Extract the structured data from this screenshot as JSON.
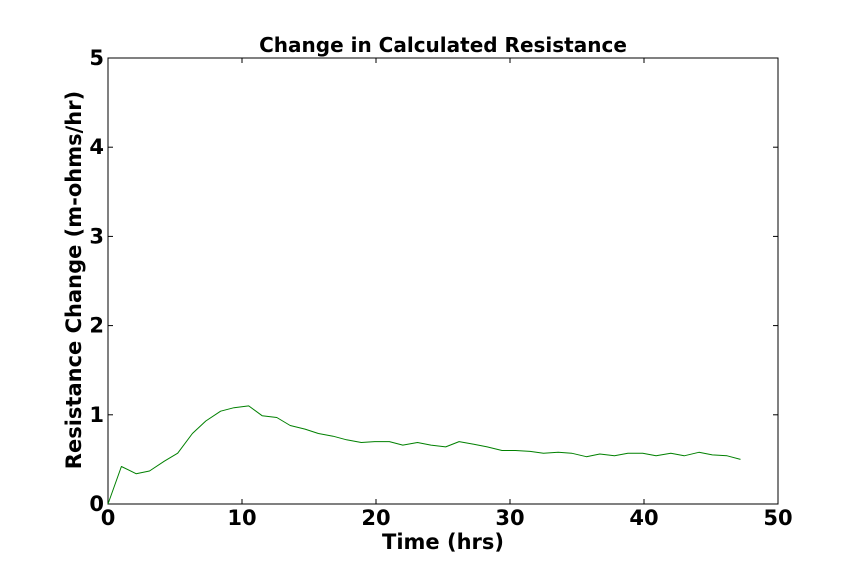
{
  "chart_data": {
    "type": "line",
    "title": "Change in Calculated Resistance",
    "xlabel": "Time (hrs)",
    "ylabel": "Resistance Change (m-ohms/hr)",
    "xlim": [
      0,
      50
    ],
    "ylim": [
      0,
      5
    ],
    "xticks": [
      0,
      10,
      20,
      30,
      40,
      50
    ],
    "yticks": [
      0,
      1,
      2,
      3,
      4,
      5
    ],
    "grid": false,
    "legend": "none",
    "series": [
      {
        "color": "#008000",
        "x": [
          0,
          1.0,
          2.1,
          3.1,
          4.2,
          5.2,
          6.3,
          7.3,
          8.4,
          9.4,
          10.5,
          11.5,
          12.6,
          13.6,
          14.7,
          15.7,
          16.8,
          17.8,
          18.9,
          19.9,
          21.0,
          22.0,
          23.1,
          24.1,
          25.2,
          26.2,
          27.3,
          28.3,
          29.4,
          30.4,
          31.5,
          32.5,
          33.6,
          34.6,
          35.7,
          36.7,
          37.8,
          38.8,
          39.9,
          40.9,
          42.0,
          43.0,
          44.1,
          45.1,
          46.2,
          47.2
        ],
        "y": [
          0.0,
          0.42,
          0.34,
          0.37,
          0.48,
          0.57,
          0.79,
          0.93,
          1.04,
          1.08,
          1.1,
          0.99,
          0.97,
          0.88,
          0.84,
          0.79,
          0.76,
          0.72,
          0.69,
          0.7,
          0.7,
          0.66,
          0.69,
          0.66,
          0.64,
          0.7,
          0.67,
          0.64,
          0.6,
          0.6,
          0.59,
          0.57,
          0.58,
          0.57,
          0.53,
          0.56,
          0.54,
          0.57,
          0.57,
          0.54,
          0.57,
          0.54,
          0.58,
          0.55,
          0.54,
          0.5
        ]
      }
    ]
  }
}
